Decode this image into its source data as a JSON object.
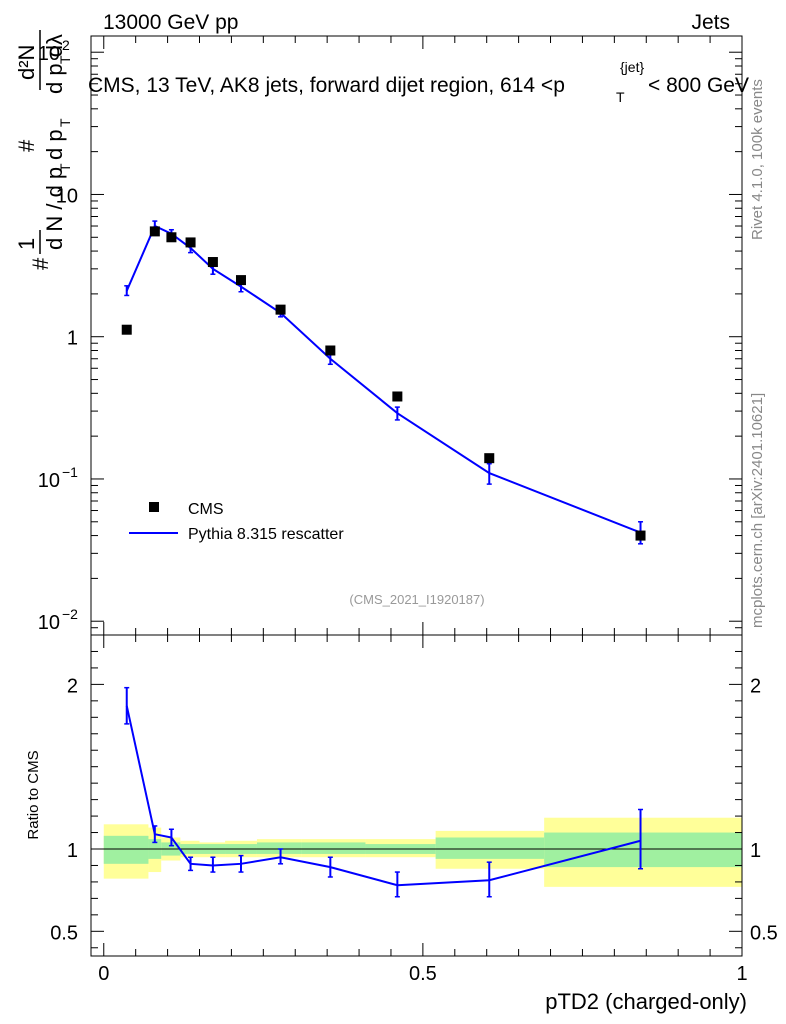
{
  "header": {
    "left": "13000 GeV pp",
    "right": "Jets"
  },
  "side_labels": {
    "rivet": "Rivet 4.1.0,  100k events",
    "mcplots": "mcplots.cern.ch [arXiv:2401.10621]"
  },
  "main_title": {
    "prefix": "CMS, 13 TeV, AK8 jets, forward dijet region, 614 <p",
    "sup": "{jet}",
    "sub": "T",
    "suffix": "< 800 GeV"
  },
  "ylabel_main": "1/N dN/dλ (per p_T)",
  "ylabel_ratio": "Ratio to CMS",
  "xlabel": "pTD2 (charged-only)",
  "analysis_id": "(CMS_2021_I1920187)",
  "colors": {
    "mc": "#0000ff",
    "band_inner": "#a0f0a0",
    "band_outer": "#ffff99",
    "data": "#000000"
  },
  "chart_data": [
    {
      "type": "scatter",
      "yscale": "log",
      "xlim": [
        -0.02,
        1.0
      ],
      "ylim": [
        0.008,
        130
      ],
      "yticks": [
        {
          "value": 0.01,
          "label": "10",
          "exp": "−2"
        },
        {
          "value": 0.1,
          "label": "10",
          "exp": "−1"
        },
        {
          "value": 1,
          "label": "1",
          "exp": ""
        },
        {
          "value": 10,
          "label": "10",
          "exp": ""
        },
        {
          "value": 100,
          "label": "10",
          "exp": "2"
        }
      ],
      "legend": {
        "position": "bottom-left",
        "entries": [
          "CMS",
          "Pythia 8.315 rescatter"
        ]
      },
      "series": [
        {
          "name": "CMS",
          "x": [
            0.036,
            0.08,
            0.106,
            0.136,
            0.171,
            0.215,
            0.277,
            0.355,
            0.46,
            0.604,
            0.841
          ],
          "y": [
            1.12,
            5.5,
            5.0,
            4.6,
            3.35,
            2.5,
            1.55,
            0.8,
            0.38,
            0.14,
            0.04
          ]
        },
        {
          "name": "Pythia 8.315 rescatter",
          "x": [
            0.036,
            0.08,
            0.106,
            0.136,
            0.171,
            0.215,
            0.277,
            0.355,
            0.46,
            0.604,
            0.841
          ],
          "y": [
            2.1,
            6.0,
            5.3,
            4.2,
            3.0,
            2.25,
            1.47,
            0.7,
            0.29,
            0.11,
            0.042
          ],
          "yerr_low": [
            1.95,
            5.5,
            4.95,
            3.9,
            2.75,
            2.07,
            1.38,
            0.64,
            0.26,
            0.092,
            0.035
          ],
          "yerr_high": [
            2.28,
            6.5,
            5.65,
            4.5,
            3.25,
            2.45,
            1.58,
            0.77,
            0.32,
            0.128,
            0.05
          ]
        }
      ]
    },
    {
      "type": "line",
      "xlim": [
        -0.02,
        1.0
      ],
      "ylim": [
        0.35,
        2.3
      ],
      "yticks": [
        {
          "value": 0.5,
          "label": "0.5"
        },
        {
          "value": 1,
          "label": "1"
        },
        {
          "value": 2,
          "label": "2"
        }
      ],
      "xticks": [
        {
          "value": 0,
          "label": "0"
        },
        {
          "value": 0.5,
          "label": "0.5"
        },
        {
          "value": 1,
          "label": "1"
        }
      ],
      "reference_line": 1.0,
      "bands": [
        {
          "x0": 0.0,
          "x1": 0.07,
          "inner_lo": 0.91,
          "inner_hi": 1.08,
          "outer_lo": 0.82,
          "outer_hi": 1.15
        },
        {
          "x0": 0.07,
          "x1": 0.09,
          "inner_lo": 0.94,
          "inner_hi": 1.06,
          "outer_lo": 0.86,
          "outer_hi": 1.13
        },
        {
          "x0": 0.09,
          "x1": 0.12,
          "inner_lo": 0.96,
          "inner_hi": 1.04,
          "outer_lo": 0.93,
          "outer_hi": 1.07
        },
        {
          "x0": 0.12,
          "x1": 0.15,
          "inner_lo": 0.97,
          "inner_hi": 1.03,
          "outer_lo": 0.95,
          "outer_hi": 1.05
        },
        {
          "x0": 0.15,
          "x1": 0.19,
          "inner_lo": 0.97,
          "inner_hi": 1.03,
          "outer_lo": 0.95,
          "outer_hi": 1.04
        },
        {
          "x0": 0.19,
          "x1": 0.24,
          "inner_lo": 0.97,
          "inner_hi": 1.03,
          "outer_lo": 0.95,
          "outer_hi": 1.05
        },
        {
          "x0": 0.24,
          "x1": 0.31,
          "inner_lo": 0.97,
          "inner_hi": 1.04,
          "outer_lo": 0.95,
          "outer_hi": 1.06
        },
        {
          "x0": 0.31,
          "x1": 0.41,
          "inner_lo": 0.97,
          "inner_hi": 1.04,
          "outer_lo": 0.95,
          "outer_hi": 1.06
        },
        {
          "x0": 0.41,
          "x1": 0.52,
          "inner_lo": 0.97,
          "inner_hi": 1.03,
          "outer_lo": 0.95,
          "outer_hi": 1.06
        },
        {
          "x0": 0.52,
          "x1": 0.69,
          "inner_lo": 0.94,
          "inner_hi": 1.07,
          "outer_lo": 0.88,
          "outer_hi": 1.11
        },
        {
          "x0": 0.69,
          "x1": 1.0,
          "inner_lo": 0.89,
          "inner_hi": 1.1,
          "outer_lo": 0.77,
          "outer_hi": 1.19
        }
      ],
      "series": [
        {
          "name": "Pythia 8.315 rescatter / CMS",
          "x": [
            0.036,
            0.08,
            0.106,
            0.136,
            0.171,
            0.215,
            0.277,
            0.355,
            0.46,
            0.604,
            0.841
          ],
          "y": [
            1.87,
            1.09,
            1.07,
            0.91,
            0.9,
            0.91,
            0.95,
            0.89,
            0.78,
            0.81,
            1.05
          ],
          "yerr_low": [
            1.76,
            1.04,
            1.02,
            0.87,
            0.86,
            0.86,
            0.91,
            0.83,
            0.71,
            0.71,
            0.88
          ],
          "yerr_high": [
            1.98,
            1.14,
            1.12,
            0.95,
            0.95,
            0.96,
            1.0,
            0.95,
            0.86,
            0.92,
            1.24
          ]
        }
      ]
    }
  ]
}
